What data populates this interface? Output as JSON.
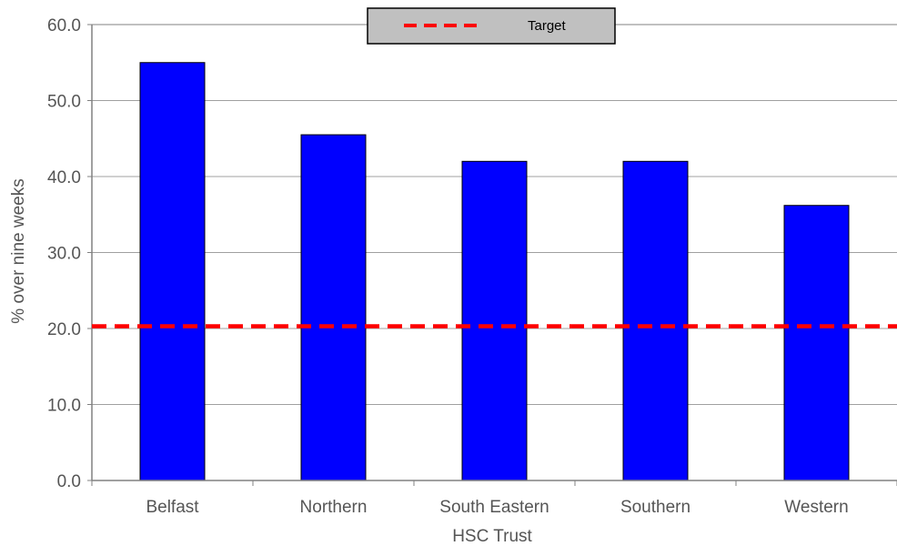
{
  "chart_data": {
    "type": "bar",
    "categories": [
      "Belfast",
      "Northern",
      "South Eastern",
      "Southern",
      "Western"
    ],
    "values": [
      55.0,
      45.5,
      42.0,
      42.0,
      36.2
    ],
    "xlabel": "HSC Trust",
    "ylabel": "% over nine weeks",
    "ylim": [
      0,
      60
    ],
    "yticks": [
      "0.0",
      "10.0",
      "20.0",
      "30.0",
      "40.0",
      "50.0",
      "60.0"
    ],
    "ytick_values": [
      0,
      10,
      20,
      30,
      40,
      50,
      60
    ],
    "grid": true,
    "legend_position": "top-center",
    "target": {
      "name": "Target",
      "value": 20.3,
      "style": "dashed"
    },
    "colors": {
      "bar": "#0000ff",
      "bar_edge": "#000000",
      "target": "#ff0000",
      "grid": "#a0a0a0",
      "legend_bg": "#c0c0c0"
    }
  }
}
